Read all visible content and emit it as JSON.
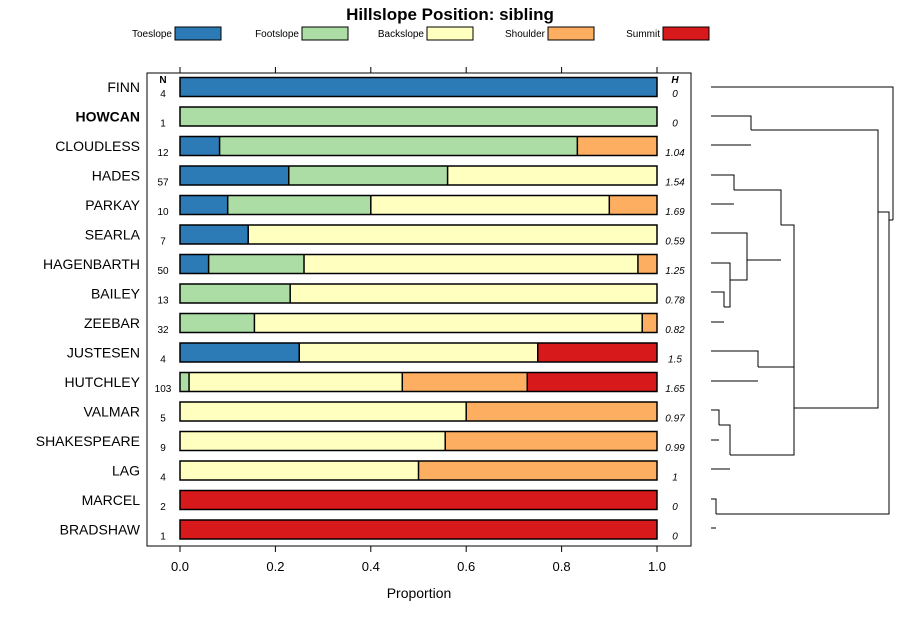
{
  "chart_data": {
    "type": "bar",
    "orientation": "horizontal",
    "stacked": true,
    "title": "Hillslope Position: sibling",
    "xlabel": "Proportion",
    "xlim": [
      0,
      1
    ],
    "xticks": [
      "0.0",
      "0.2",
      "0.4",
      "0.6",
      "0.8",
      "1.0"
    ],
    "n_header": "N",
    "h_header": "H",
    "highlight": "HOWCAN",
    "legend": [
      {
        "name": "Toeslope",
        "color": "#2c7bb6"
      },
      {
        "name": "Footslope",
        "color": "#abdda4"
      },
      {
        "name": "Backslope",
        "color": "#ffffbf"
      },
      {
        "name": "Shoulder",
        "color": "#fdae61"
      },
      {
        "name": "Summit",
        "color": "#d7191c"
      }
    ],
    "rows": [
      {
        "name": "FINN",
        "n": "4",
        "h": "0",
        "values": [
          1.0,
          0,
          0,
          0,
          0
        ]
      },
      {
        "name": "HOWCAN",
        "n": "1",
        "h": "0",
        "values": [
          0,
          1.0,
          0,
          0,
          0
        ]
      },
      {
        "name": "CLOUDLESS",
        "n": "12",
        "h": "1.04",
        "values": [
          0.083,
          0.75,
          0,
          0.167,
          0
        ]
      },
      {
        "name": "HADES",
        "n": "57",
        "h": "1.54",
        "values": [
          0.228,
          0.333,
          0.439,
          0,
          0
        ]
      },
      {
        "name": "PARKAY",
        "n": "10",
        "h": "1.69",
        "values": [
          0.1,
          0.3,
          0.5,
          0.1,
          0
        ]
      },
      {
        "name": "SEARLA",
        "n": "7",
        "h": "0.59",
        "values": [
          0.143,
          0,
          0.857,
          0,
          0
        ]
      },
      {
        "name": "HAGENBARTH",
        "n": "50",
        "h": "1.25",
        "values": [
          0.06,
          0.2,
          0.7,
          0.04,
          0
        ]
      },
      {
        "name": "BAILEY",
        "n": "13",
        "h": "0.78",
        "values": [
          0,
          0.231,
          0.769,
          0,
          0
        ]
      },
      {
        "name": "ZEEBAR",
        "n": "32",
        "h": "0.82",
        "values": [
          0,
          0.156,
          0.813,
          0.031,
          0
        ]
      },
      {
        "name": "JUSTESEN",
        "n": "4",
        "h": "1.5",
        "values": [
          0.25,
          0,
          0.5,
          0,
          0.25
        ]
      },
      {
        "name": "HUTCHLEY",
        "n": "103",
        "h": "1.65",
        "values": [
          0,
          0.019,
          0.447,
          0.262,
          0.272
        ]
      },
      {
        "name": "VALMAR",
        "n": "5",
        "h": "0.97",
        "values": [
          0,
          0,
          0.6,
          0.4,
          0
        ]
      },
      {
        "name": "SHAKESPEARE",
        "n": "9",
        "h": "0.99",
        "values": [
          0,
          0,
          0.556,
          0.444,
          0
        ]
      },
      {
        "name": "LAG",
        "n": "4",
        "h": "1",
        "values": [
          0,
          0,
          0.5,
          0.5,
          0
        ]
      },
      {
        "name": "MARCEL",
        "n": "2",
        "h": "0",
        "values": [
          0,
          0,
          0,
          0,
          1.0
        ]
      },
      {
        "name": "BRADSHAW",
        "n": "1",
        "h": "0",
        "values": [
          0,
          0,
          0,
          0,
          1.0
        ]
      }
    ]
  }
}
